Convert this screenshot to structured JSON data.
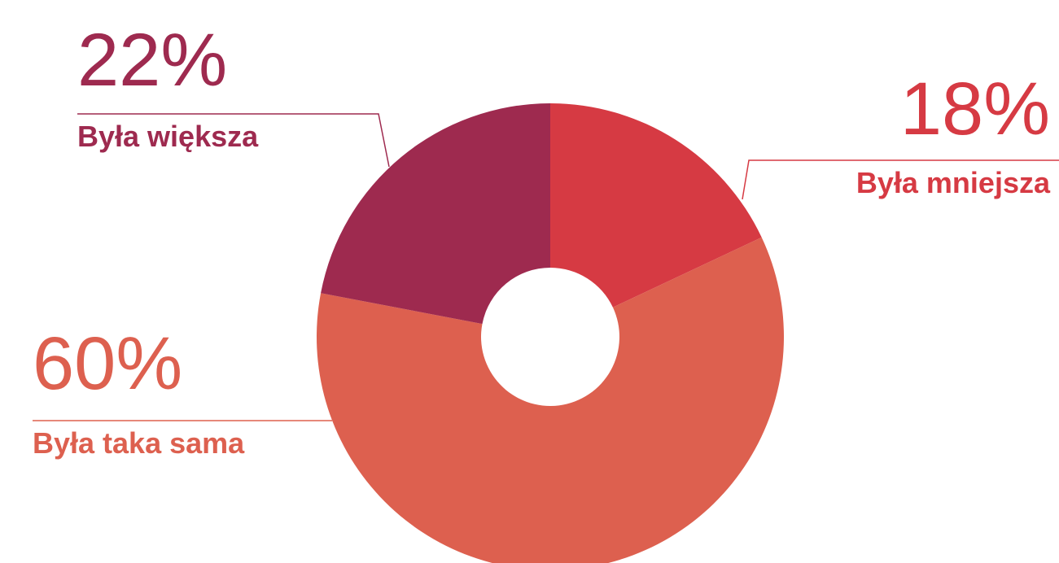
{
  "chart_data": {
    "type": "pie",
    "categories": [
      "Była mniejsza",
      "Była taka sama",
      "Była większa"
    ],
    "values": [
      18,
      60,
      22
    ],
    "value_labels": [
      "18%",
      "60%",
      "22%"
    ],
    "colors": [
      "#d63a43",
      "#dd604f",
      "#9e2a4f"
    ]
  }
}
